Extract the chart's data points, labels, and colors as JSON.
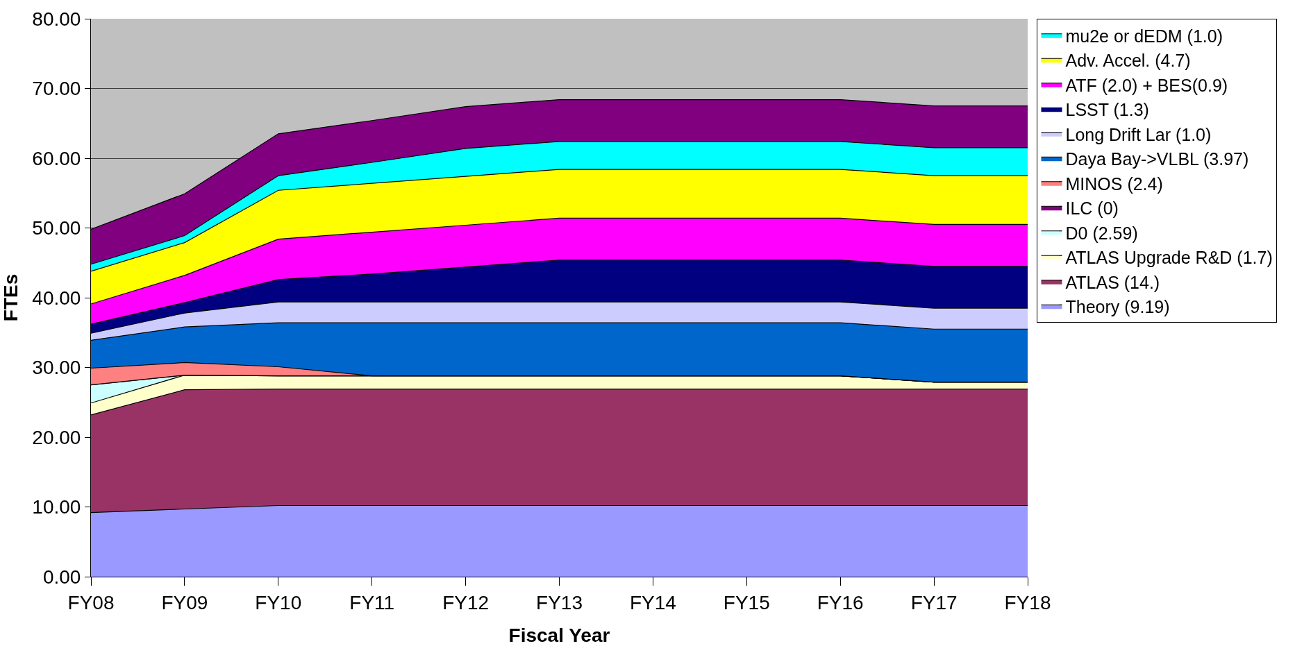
{
  "chart_data": {
    "type": "area",
    "stacked": true,
    "xlabel": "Fiscal Year",
    "ylabel": "FTEs",
    "categories": [
      "FY08",
      "FY09",
      "FY10",
      "FY11",
      "FY12",
      "FY13",
      "FY14",
      "FY15",
      "FY16",
      "FY17",
      "FY18"
    ],
    "ylim": [
      0,
      80
    ],
    "yticks": [
      {
        "value": 0,
        "label": "0.00"
      },
      {
        "value": 10,
        "label": "10.00"
      },
      {
        "value": 20,
        "label": "20.00"
      },
      {
        "value": 30,
        "label": "30.00"
      },
      {
        "value": 40,
        "label": "40.00"
      },
      {
        "value": 50,
        "label": "50.00"
      },
      {
        "value": 60,
        "label": "60.00"
      },
      {
        "value": 70,
        "label": "70.00"
      },
      {
        "value": 80,
        "label": "80.00"
      }
    ],
    "grid": "y",
    "legend": "right",
    "series": [
      {
        "name": "Theory (9.19)",
        "color": "#9999ff",
        "values": [
          9.2,
          9.7,
          10.2,
          10.2,
          10.2,
          10.2,
          10.2,
          10.2,
          10.2,
          10.2,
          10.2
        ]
      },
      {
        "name": "ATLAS (14.)",
        "color": "#993366",
        "values": [
          14.0,
          17.1,
          16.7,
          16.7,
          16.7,
          16.7,
          16.7,
          16.7,
          16.7,
          16.7,
          16.7
        ]
      },
      {
        "name": "ATLAS Upgrade R&D (1.7)",
        "color": "#ffffcc",
        "values": [
          1.7,
          2.1,
          1.9,
          1.9,
          1.9,
          1.9,
          1.9,
          1.9,
          1.9,
          1.0,
          1.0
        ]
      },
      {
        "name": "D0 (2.59)",
        "color": "#ccffff",
        "values": [
          2.6,
          0,
          0,
          0,
          0,
          0,
          0,
          0,
          0,
          0,
          0
        ]
      },
      {
        "name": "ILC (0)",
        "color": "#800080",
        "values": [
          null,
          null,
          null,
          null,
          null,
          null,
          null,
          null,
          null,
          null,
          null
        ]
      },
      {
        "name": "MINOS (2.4)",
        "color": "#ff8080",
        "values": [
          2.4,
          1.8,
          1.3,
          0,
          0,
          0,
          0,
          0,
          0,
          0,
          0
        ]
      },
      {
        "name": "Daya Bay->VLBL (3.97)",
        "color": "#0066cc",
        "values": [
          4.0,
          5.1,
          6.3,
          7.6,
          7.6,
          7.6,
          7.6,
          7.6,
          7.6,
          7.6,
          7.6
        ]
      },
      {
        "name": "Long Drift Lar (1.0)",
        "color": "#ccccff",
        "values": [
          1.0,
          2.0,
          3.0,
          3.0,
          3.0,
          3.0,
          3.0,
          3.0,
          3.0,
          3.0,
          3.0
        ]
      },
      {
        "name": "LSST (1.3)",
        "color": "#000080",
        "values": [
          1.3,
          1.5,
          3.2,
          4.0,
          5.0,
          6.0,
          6.0,
          6.0,
          6.0,
          6.0,
          6.0
        ]
      },
      {
        "name": "ATF (2.0) + BES(0.9)",
        "color": "#ff00ff",
        "values": [
          2.9,
          3.9,
          5.8,
          6.0,
          6.0,
          6.0,
          6.0,
          6.0,
          6.0,
          6.0,
          6.0
        ]
      },
      {
        "name": "Adv. Accel. (4.7)",
        "color": "#ffff00",
        "values": [
          4.7,
          4.7,
          7.0,
          7.0,
          7.0,
          7.0,
          7.0,
          7.0,
          7.0,
          7.0,
          7.0
        ]
      },
      {
        "name": "mu2e or dEDM (1.0)",
        "color": "#00ffff",
        "values": [
          1.0,
          1.0,
          2.1,
          3.0,
          4.0,
          4.0,
          4.0,
          4.0,
          4.0,
          4.0,
          4.0
        ]
      },
      {
        "color": "#800080",
        "values": [
          5.0,
          6.0,
          6.0,
          6.0,
          6.0,
          6.0,
          6.0,
          6.0,
          6.0,
          6.0,
          6.0
        ]
      }
    ]
  }
}
